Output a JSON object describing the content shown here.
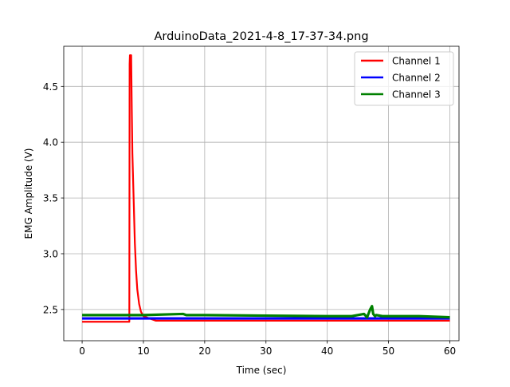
{
  "chart_data": {
    "type": "line",
    "title": "ArduinoData_2021-4-8_17-37-34.png",
    "xlabel": "Time (sec)",
    "ylabel": "EMG Amplitude (V)",
    "xlim": [
      -3,
      61.5
    ],
    "ylim": [
      2.22,
      4.86
    ],
    "xticks": [
      0,
      10,
      20,
      30,
      40,
      50,
      60
    ],
    "yticks": [
      2.5,
      3.0,
      3.5,
      4.0,
      4.5
    ],
    "xtick_labels": [
      "0",
      "10",
      "20",
      "30",
      "40",
      "50",
      "60"
    ],
    "ytick_labels": [
      "2.5",
      "3.0",
      "3.5",
      "4.0",
      "4.5"
    ],
    "grid": true,
    "legend_position": "top-right",
    "series": [
      {
        "name": "Channel 1",
        "color": "#ff0000",
        "x": [
          0,
          7.7,
          7.75,
          7.8,
          7.9,
          8.0,
          8.1,
          8.2,
          8.4,
          8.6,
          8.8,
          9.0,
          9.3,
          9.6,
          10.0,
          11.0,
          12.0,
          20,
          30,
          40,
          45,
          50,
          55,
          60
        ],
        "y": [
          2.39,
          2.39,
          4.7,
          4.78,
          4.78,
          4.78,
          4.3,
          3.9,
          3.5,
          3.1,
          2.85,
          2.68,
          2.55,
          2.48,
          2.44,
          2.42,
          2.4,
          2.4,
          2.4,
          2.4,
          2.4,
          2.4,
          2.4,
          2.4
        ]
      },
      {
        "name": "Channel 2",
        "color": "#0000ff",
        "x": [
          0,
          10,
          20,
          30,
          40,
          50,
          60
        ],
        "y": [
          2.42,
          2.42,
          2.42,
          2.42,
          2.42,
          2.42,
          2.42
        ]
      },
      {
        "name": "Channel 3",
        "color": "#008000",
        "x": [
          0,
          10,
          16.5,
          17,
          20,
          30,
          40,
          44,
          45,
          46,
          46.5,
          47,
          47.3,
          47.5,
          47.8,
          48,
          49,
          50,
          55,
          60
        ],
        "y": [
          2.45,
          2.45,
          2.46,
          2.45,
          2.45,
          2.445,
          2.44,
          2.44,
          2.45,
          2.46,
          2.43,
          2.5,
          2.53,
          2.46,
          2.44,
          2.45,
          2.44,
          2.44,
          2.44,
          2.43
        ]
      }
    ]
  }
}
